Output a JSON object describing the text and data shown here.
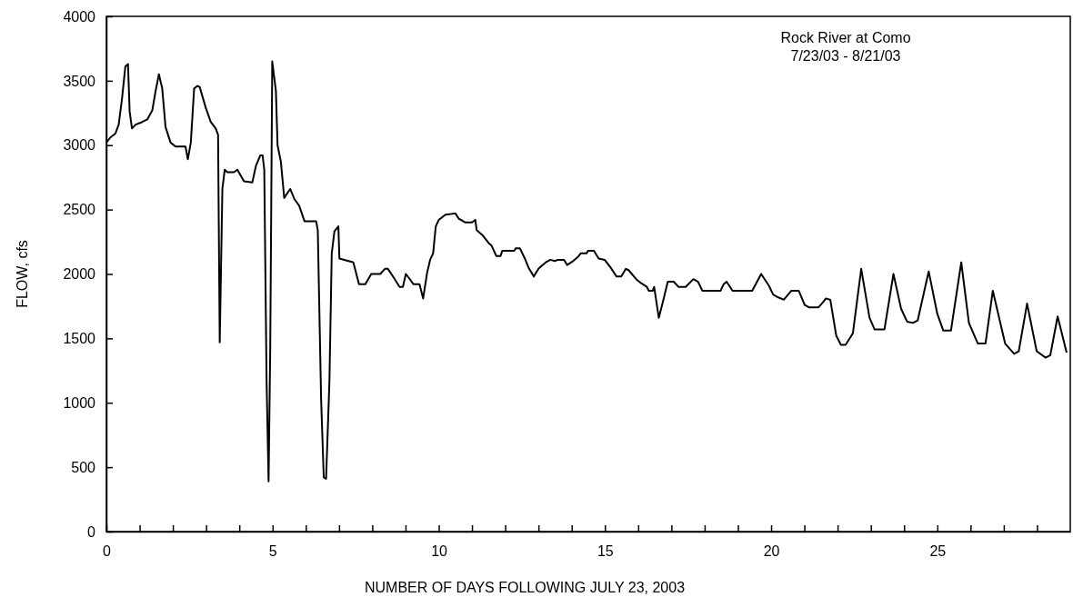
{
  "chart_data": {
    "type": "line",
    "xlabel": "NUMBER OF DAYS FOLLOWING JULY 23, 2003",
    "ylabel": "FLOW, cfs",
    "annotations": [
      "Rock River at Como",
      "7/23/03 - 8/21/03"
    ],
    "xlim": [
      0,
      29
    ],
    "ylim": [
      0,
      4000
    ],
    "xticks": [
      0,
      {
        "value": 1,
        "label": null
      },
      {
        "value": 2,
        "label": null
      },
      {
        "value": 3,
        "label": null
      },
      {
        "value": 4,
        "label": null
      },
      5,
      {
        "value": 6,
        "label": null
      },
      {
        "value": 7,
        "label": null
      },
      {
        "value": 8,
        "label": null
      },
      {
        "value": 9,
        "label": null
      },
      10,
      {
        "value": 11,
        "label": null
      },
      {
        "value": 12,
        "label": null
      },
      {
        "value": 13,
        "label": null
      },
      {
        "value": 14,
        "label": null
      },
      15,
      {
        "value": 16,
        "label": null
      },
      {
        "value": 17,
        "label": null
      },
      {
        "value": 18,
        "label": null
      },
      {
        "value": 19,
        "label": null
      },
      20,
      {
        "value": 21,
        "label": null
      },
      {
        "value": 22,
        "label": null
      },
      {
        "value": 23,
        "label": null
      },
      {
        "value": 24,
        "label": null
      },
      25,
      {
        "value": 26,
        "label": null
      },
      {
        "value": 27,
        "label": null
      },
      {
        "value": 28,
        "label": null
      }
    ],
    "yticks": [
      0,
      500,
      1000,
      1500,
      2000,
      2500,
      3000,
      3500,
      4000
    ],
    "grid": false,
    "marker": "none",
    "line_style": "solid",
    "series": [
      {
        "color": "#000000",
        "x": [
          0,
          0.12,
          0.27,
          0.37,
          0.47,
          0.57,
          0.65,
          0.7,
          0.77,
          0.88,
          1.08,
          1.23,
          1.38,
          1.48,
          1.58,
          1.68,
          1.78,
          1.93,
          2.08,
          2.38,
          2.45,
          2.54,
          2.64,
          2.74,
          2.81,
          2.99,
          3.14,
          3.29,
          3.36,
          3.41,
          3.49,
          3.56,
          3.64,
          3.84,
          3.94,
          4.14,
          4.39,
          4.5,
          4.63,
          4.7,
          4.75,
          4.82,
          4.88,
          4.93,
          4.99,
          5.1,
          5.15,
          5.25,
          5.35,
          5.45,
          5.53,
          5.66,
          5.8,
          5.96,
          6.31,
          6.36,
          6.46,
          6.54,
          6.61,
          6.71,
          6.78,
          6.86,
          6.98,
          7.01,
          7.43,
          7.6,
          7.79,
          7.97,
          8.24,
          8.38,
          8.47,
          8.65,
          8.82,
          8.92,
          9.01,
          9.1,
          9.24,
          9.42,
          9.53,
          9.65,
          9.74,
          9.83,
          9.91,
          10.0,
          10.2,
          10.5,
          10.6,
          10.8,
          11.0,
          11.1,
          11.14,
          11.32,
          11.5,
          11.59,
          11.73,
          11.86,
          11.91,
          12.27,
          12.32,
          12.44,
          12.59,
          12.7,
          12.86,
          13.0,
          13.13,
          13.22,
          13.36,
          13.49,
          13.58,
          13.77,
          13.86,
          14.04,
          14.18,
          14.27,
          14.45,
          14.49,
          14.67,
          14.81,
          14.99,
          15.17,
          15.35,
          15.49,
          15.63,
          15.71,
          15.94,
          16.08,
          16.26,
          16.32,
          16.44,
          16.48,
          16.62,
          16.76,
          16.89,
          17.07,
          17.21,
          17.43,
          17.66,
          17.8,
          17.93,
          18.48,
          18.57,
          18.66,
          18.84,
          19.43,
          19.7,
          19.93,
          20.06,
          20.2,
          20.38,
          20.61,
          20.83,
          21.01,
          21.15,
          21.42,
          21.56,
          21.65,
          21.78,
          21.96,
          22.1,
          22.24,
          22.46,
          22.71,
          22.96,
          23.11,
          23.41,
          23.68,
          23.91,
          24.09,
          24.27,
          24.41,
          24.74,
          25.0,
          25.18,
          25.41,
          25.72,
          25.95,
          26.22,
          26.45,
          26.67,
          27.04,
          27.31,
          27.45,
          27.7,
          27.99,
          28.26,
          28.4,
          28.62,
          28.89
        ],
        "values": [
          3020,
          3060,
          3090,
          3160,
          3360,
          3610,
          3630,
          3260,
          3130,
          3160,
          3180,
          3200,
          3270,
          3420,
          3550,
          3440,
          3140,
          3020,
          2990,
          2990,
          2890,
          3020,
          3440,
          3460,
          3450,
          3290,
          3180,
          3130,
          3080,
          1470,
          2660,
          2810,
          2790,
          2790,
          2810,
          2720,
          2710,
          2840,
          2920,
          2920,
          2810,
          1160,
          390,
          1430,
          3650,
          3420,
          3000,
          2870,
          2590,
          2630,
          2660,
          2580,
          2530,
          2410,
          2410,
          2340,
          1030,
          420,
          410,
          1160,
          2160,
          2330,
          2370,
          2120,
          2090,
          1920,
          1920,
          2000,
          2000,
          2040,
          2040,
          1970,
          1900,
          1900,
          2000,
          1970,
          1920,
          1920,
          1810,
          2010,
          2110,
          2160,
          2370,
          2420,
          2460,
          2470,
          2430,
          2400,
          2400,
          2420,
          2340,
          2300,
          2240,
          2220,
          2140,
          2140,
          2180,
          2180,
          2200,
          2200,
          2120,
          2050,
          1980,
          2040,
          2070,
          2090,
          2110,
          2100,
          2110,
          2110,
          2070,
          2100,
          2130,
          2160,
          2160,
          2180,
          2180,
          2120,
          2110,
          2050,
          1980,
          1980,
          2040,
          2030,
          1960,
          1930,
          1900,
          1870,
          1870,
          1900,
          1660,
          1800,
          1940,
          1940,
          1900,
          1900,
          1960,
          1940,
          1870,
          1870,
          1920,
          1940,
          1870,
          1870,
          2000,
          1910,
          1840,
          1820,
          1800,
          1870,
          1870,
          1760,
          1740,
          1740,
          1780,
          1810,
          1800,
          1520,
          1450,
          1450,
          1540,
          2040,
          1660,
          1570,
          1570,
          2000,
          1730,
          1630,
          1620,
          1640,
          2020,
          1690,
          1560,
          1560,
          2090,
          1620,
          1460,
          1460,
          1870,
          1460,
          1380,
          1400,
          1770,
          1400,
          1350,
          1370,
          1670,
          1390
        ]
      }
    ]
  }
}
